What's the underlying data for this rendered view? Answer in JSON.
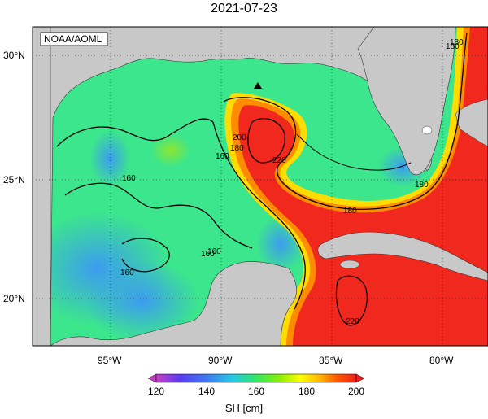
{
  "title": "2021-07-23",
  "credit": "NOAA/AOML",
  "lat_labels": [
    "30°N",
    "25°N",
    "20°N"
  ],
  "lon_labels": [
    "95°W",
    "90°W",
    "85°W",
    "80°W"
  ],
  "contour_labels": [
    "180",
    "160",
    "180",
    "160",
    "200",
    "220",
    "180",
    "180",
    "160",
    "160",
    "160",
    "180",
    "220"
  ],
  "marker": "triangle",
  "colorbar": {
    "ticks": [
      "120",
      "140",
      "160",
      "180",
      "200"
    ],
    "unit_label": "SH [cm]",
    "colors": [
      "#c83cc8",
      "#3c3cf0",
      "#1e96f0",
      "#28dcc8",
      "#32e632",
      "#b4f000",
      "#ffff00",
      "#ffb400",
      "#ff5a00",
      "#f01e1e"
    ]
  },
  "land_color": "#c8c8c8",
  "water_colors": {
    "low": "#3c8cf0",
    "mid": "#32e664",
    "high": "#f02814"
  }
}
